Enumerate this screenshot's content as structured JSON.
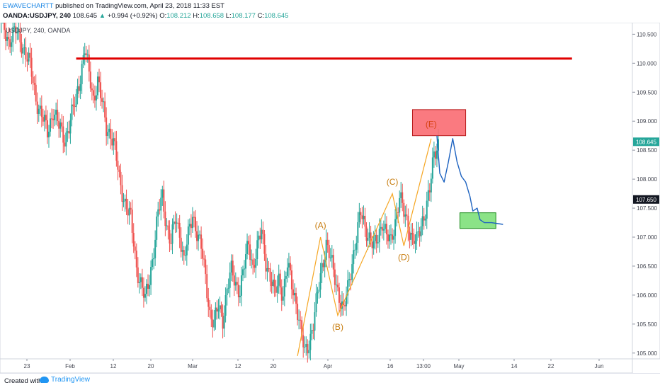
{
  "header": {
    "author": "EWAVECHARTT",
    "published": "published on TradingView.com, April 23, 2018 11:33 EST",
    "symbol": "OANDA:USDJPY, 240",
    "last": "108.645",
    "change_arrow": "▲",
    "change": "+0.994 (+0.92%)",
    "open_label": "O:",
    "open": "108.212",
    "high_label": "H:",
    "high": "108.658",
    "low_label": "L:",
    "low": "108.177",
    "close_label": "C:",
    "close": "108.645"
  },
  "chart_label": "USDJPY, 240, OANDA",
  "footer": {
    "created_with": "Created with",
    "brand": "TradingView"
  },
  "colors": {
    "up": "#26a69a",
    "down": "#ef5350",
    "wave": "#f5a623",
    "label": "#c77c0e",
    "forecast": "#1e63c0",
    "resistance": "#e00000"
  },
  "chart_data": {
    "type": "candlestick",
    "y_axis": {
      "min": 104.9,
      "max": 110.7,
      "ticks": [
        "110.500",
        "110.000",
        "109.500",
        "109.000",
        "108.500",
        "108.000",
        "107.500",
        "107.000",
        "106.500",
        "106.000",
        "105.500",
        "105.000"
      ]
    },
    "x_axis": {
      "ticks": [
        "23",
        "Feb",
        "12",
        "20",
        "Mar",
        "12",
        "20",
        "Apr",
        "16",
        "13:00",
        "May",
        "14",
        "22",
        "Jun"
      ]
    },
    "price_labels": [
      {
        "text": "108.645",
        "value": 108.645,
        "color": "#26a69a"
      },
      {
        "text": "107.650",
        "value": 107.65,
        "color": "#131722"
      }
    ],
    "price_path": [
      {
        "x": 0,
        "y": 110.7
      },
      {
        "x": 5,
        "y": 110.4
      },
      {
        "x": 10,
        "y": 110.55
      },
      {
        "x": 15,
        "y": 110.3
      },
      {
        "x": 20,
        "y": 109.95
      },
      {
        "x": 24,
        "y": 109.4
      },
      {
        "x": 28,
        "y": 109.1
      },
      {
        "x": 32,
        "y": 108.8
      },
      {
        "x": 36,
        "y": 109.2
      },
      {
        "x": 40,
        "y": 108.9
      },
      {
        "x": 44,
        "y": 108.7
      },
      {
        "x": 48,
        "y": 109.0
      },
      {
        "x": 52,
        "y": 109.4
      },
      {
        "x": 55,
        "y": 109.8
      },
      {
        "x": 58,
        "y": 110.25
      },
      {
        "x": 61,
        "y": 109.8
      },
      {
        "x": 64,
        "y": 109.4
      },
      {
        "x": 67,
        "y": 109.7
      },
      {
        "x": 70,
        "y": 109.3
      },
      {
        "x": 73,
        "y": 108.9
      },
      {
        "x": 76,
        "y": 108.8
      },
      {
        "x": 79,
        "y": 108.5
      },
      {
        "x": 82,
        "y": 108.0
      },
      {
        "x": 86,
        "y": 107.6
      },
      {
        "x": 90,
        "y": 107.3
      },
      {
        "x": 94,
        "y": 106.5
      },
      {
        "x": 97,
        "y": 106.2
      },
      {
        "x": 100,
        "y": 105.9
      },
      {
        "x": 103,
        "y": 106.3
      },
      {
        "x": 106,
        "y": 106.8
      },
      {
        "x": 109,
        "y": 107.4
      },
      {
        "x": 112,
        "y": 107.7
      },
      {
        "x": 115,
        "y": 107.2
      },
      {
        "x": 118,
        "y": 106.9
      },
      {
        "x": 121,
        "y": 107.3
      },
      {
        "x": 124,
        "y": 107.1
      },
      {
        "x": 127,
        "y": 106.6
      },
      {
        "x": 130,
        "y": 107.0
      },
      {
        "x": 133,
        "y": 107.4
      },
      {
        "x": 136,
        "y": 107.1
      },
      {
        "x": 139,
        "y": 106.8
      },
      {
        "x": 142,
        "y": 106.3
      },
      {
        "x": 145,
        "y": 105.7
      },
      {
        "x": 148,
        "y": 105.5
      },
      {
        "x": 151,
        "y": 105.8
      },
      {
        "x": 154,
        "y": 105.6
      },
      {
        "x": 157,
        "y": 106.1
      },
      {
        "x": 160,
        "y": 106.4
      },
      {
        "x": 163,
        "y": 106.2
      },
      {
        "x": 166,
        "y": 106.1
      },
      {
        "x": 169,
        "y": 106.5
      },
      {
        "x": 172,
        "y": 106.9
      },
      {
        "x": 175,
        "y": 106.5
      },
      {
        "x": 178,
        "y": 106.8
      },
      {
        "x": 181,
        "y": 107.1
      },
      {
        "x": 184,
        "y": 106.6
      },
      {
        "x": 187,
        "y": 106.3
      },
      {
        "x": 190,
        "y": 106.0
      },
      {
        "x": 193,
        "y": 106.3
      },
      {
        "x": 196,
        "y": 106.0
      },
      {
        "x": 199,
        "y": 106.5
      },
      {
        "x": 202,
        "y": 106.2
      },
      {
        "x": 205,
        "y": 105.9
      },
      {
        "x": 208,
        "y": 105.4
      },
      {
        "x": 211,
        "y": 105.0
      },
      {
        "x": 214,
        "y": 105.2
      },
      {
        "x": 217,
        "y": 105.5
      },
      {
        "x": 220,
        "y": 106.0
      },
      {
        "x": 223,
        "y": 106.5
      },
      {
        "x": 226,
        "y": 106.9
      },
      {
        "x": 229,
        "y": 106.6
      },
      {
        "x": 232,
        "y": 106.3
      },
      {
        "x": 235,
        "y": 106.0
      },
      {
        "x": 238,
        "y": 105.7
      },
      {
        "x": 241,
        "y": 106.1
      },
      {
        "x": 244,
        "y": 106.6
      },
      {
        "x": 247,
        "y": 107.0
      },
      {
        "x": 250,
        "y": 107.4
      },
      {
        "x": 253,
        "y": 107.2
      },
      {
        "x": 256,
        "y": 107.0
      },
      {
        "x": 259,
        "y": 106.8
      },
      {
        "x": 262,
        "y": 107.0
      },
      {
        "x": 265,
        "y": 107.3
      },
      {
        "x": 268,
        "y": 107.0
      },
      {
        "x": 271,
        "y": 106.9
      },
      {
        "x": 274,
        "y": 107.3
      },
      {
        "x": 277,
        "y": 107.7
      },
      {
        "x": 280,
        "y": 107.4
      },
      {
        "x": 283,
        "y": 107.2
      },
      {
        "x": 286,
        "y": 107.0
      },
      {
        "x": 289,
        "y": 106.9
      },
      {
        "x": 292,
        "y": 107.2
      },
      {
        "x": 295,
        "y": 107.5
      },
      {
        "x": 298,
        "y": 107.8
      },
      {
        "x": 301,
        "y": 108.4
      },
      {
        "x": 304,
        "y": 108.65
      }
    ],
    "resistance": {
      "value": 110.08,
      "from_x": 53,
      "to_x": 398
    },
    "wave_labels": [
      {
        "label": "(A)",
        "x": 223,
        "y": 107.0,
        "label_y": 107.2
      },
      {
        "label": "(B)",
        "x": 235,
        "y": 105.65,
        "label_y": 105.45
      },
      {
        "label": "(C)",
        "x": 273,
        "y": 107.75,
        "label_y": 107.95
      },
      {
        "label": "(D)",
        "x": 281,
        "y": 106.85,
        "label_y": 106.65
      },
      {
        "label": "(E)",
        "x": 300,
        "y": 108.7,
        "label_y": 108.95
      }
    ],
    "wave_start": {
      "x": 207,
      "y": 104.95
    },
    "forecast_path": [
      {
        "x": 304,
        "y": 108.75
      },
      {
        "x": 306,
        "y": 108.1
      },
      {
        "x": 309,
        "y": 107.95
      },
      {
        "x": 312,
        "y": 108.3
      },
      {
        "x": 315,
        "y": 108.7
      },
      {
        "x": 318,
        "y": 108.3
      },
      {
        "x": 321,
        "y": 108.05
      },
      {
        "x": 324,
        "y": 107.95
      },
      {
        "x": 327,
        "y": 107.7
      },
      {
        "x": 329,
        "y": 107.45
      },
      {
        "x": 332,
        "y": 107.5
      },
      {
        "x": 334,
        "y": 107.3
      },
      {
        "x": 337,
        "y": 107.25
      },
      {
        "x": 342,
        "y": 107.25
      },
      {
        "x": 350,
        "y": 107.22
      }
    ],
    "target_zones": [
      {
        "name": "sell-zone",
        "x0": 287,
        "x1": 324,
        "y0": 109.2,
        "y1": 108.75,
        "fill": "#f96b72",
        "stroke": "#b71c1c"
      },
      {
        "name": "buy-zone",
        "x0": 320,
        "x1": 345,
        "y0": 107.42,
        "y1": 107.15,
        "fill": "#7ee07a",
        "stroke": "#1b8a1b"
      }
    ]
  }
}
